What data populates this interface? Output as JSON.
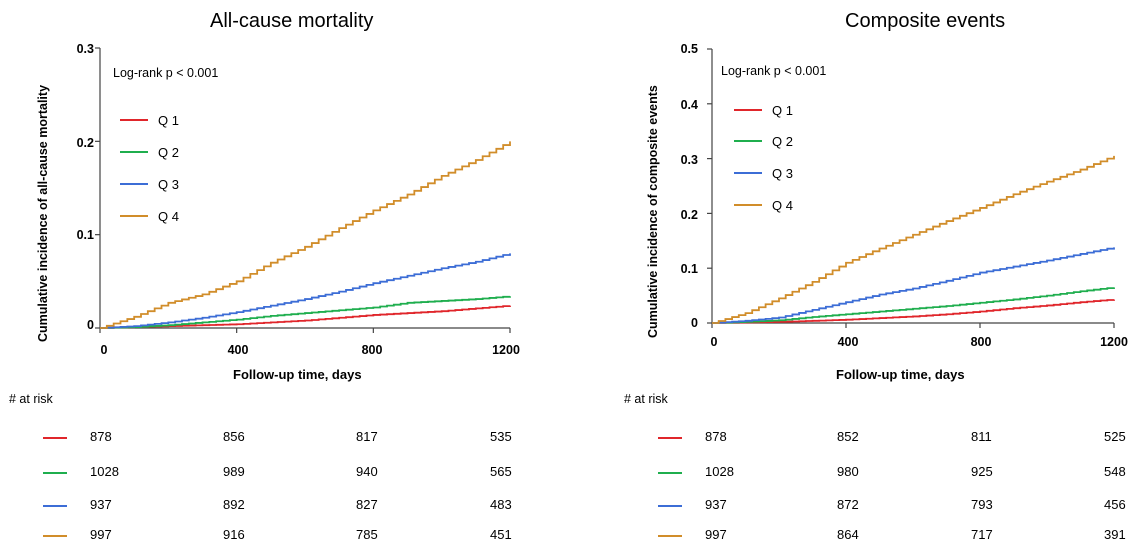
{
  "colors": {
    "Q1": "#e0262b",
    "Q2": "#1fae4e",
    "Q3": "#3c6dd6",
    "Q4": "#d18d2a"
  },
  "chart_data": [
    {
      "type": "line",
      "title": "All-cause mortality",
      "xlabel": "Follow-up time, days",
      "ylabel": "Cumulative incidence of all-cause mortality",
      "xlim": [
        0,
        1200
      ],
      "ylim": [
        0,
        0.3
      ],
      "xticks": [
        "0",
        "400",
        "800",
        "1200"
      ],
      "yticks": [
        "0",
        "0.1",
        "0.2",
        "0.3"
      ],
      "annotation": "Log-rank p < 0.001",
      "legend_position": "top-left",
      "series": [
        {
          "name": "Q 1",
          "color": "#e0262b",
          "x": [
            0,
            100,
            200,
            300,
            400,
            500,
            600,
            700,
            800,
            900,
            1000,
            1100,
            1200
          ],
          "y": [
            0,
            0.001,
            0.002,
            0.003,
            0.004,
            0.006,
            0.008,
            0.011,
            0.014,
            0.016,
            0.018,
            0.021,
            0.024
          ]
        },
        {
          "name": "Q 2",
          "color": "#1fae4e",
          "x": [
            0,
            100,
            200,
            300,
            400,
            500,
            600,
            700,
            800,
            900,
            1000,
            1100,
            1200
          ],
          "y": [
            0,
            0.001,
            0.003,
            0.006,
            0.009,
            0.013,
            0.016,
            0.019,
            0.022,
            0.027,
            0.029,
            0.031,
            0.034
          ]
        },
        {
          "name": "Q 3",
          "color": "#3c6dd6",
          "x": [
            0,
            100,
            200,
            300,
            400,
            500,
            600,
            700,
            800,
            900,
            1000,
            1100,
            1200
          ],
          "y": [
            0,
            0.002,
            0.006,
            0.011,
            0.017,
            0.024,
            0.031,
            0.039,
            0.048,
            0.056,
            0.064,
            0.071,
            0.08
          ]
        },
        {
          "name": "Q 4",
          "color": "#d18d2a",
          "x": [
            0,
            100,
            200,
            300,
            400,
            500,
            600,
            700,
            800,
            900,
            1000,
            1100,
            1200
          ],
          "y": [
            0,
            0.012,
            0.027,
            0.036,
            0.05,
            0.07,
            0.087,
            0.107,
            0.126,
            0.143,
            0.163,
            0.18,
            0.2
          ]
        }
      ],
      "at_risk": {
        "title": "# at risk",
        "rows": [
          {
            "name": "Q 1",
            "values": [
              "878",
              "856",
              "817",
              "535"
            ]
          },
          {
            "name": "Q 2",
            "values": [
              "1028",
              "989",
              "940",
              "565"
            ]
          },
          {
            "name": "Q 3",
            "values": [
              "937",
              "892",
              "827",
              "483"
            ]
          },
          {
            "name": "Q 4",
            "values": [
              "997",
              "916",
              "785",
              "451"
            ]
          }
        ]
      }
    },
    {
      "type": "line",
      "title": "Composite events",
      "xlabel": "Follow-up time, days",
      "ylabel": "Cumulative incidence of composite events",
      "xlim": [
        0,
        1200
      ],
      "ylim": [
        0,
        0.5
      ],
      "xticks": [
        "0",
        "400",
        "800",
        "1200"
      ],
      "yticks": [
        "0",
        "0.1",
        "0.2",
        "0.3",
        "0.4",
        "0.5"
      ],
      "annotation": "Log-rank p < 0.001",
      "legend_position": "top-left",
      "series": [
        {
          "name": "Q 1",
          "color": "#e0262b",
          "x": [
            0,
            100,
            200,
            300,
            400,
            500,
            600,
            700,
            800,
            900,
            1000,
            1100,
            1200
          ],
          "y": [
            0,
            0.001,
            0.002,
            0.004,
            0.006,
            0.009,
            0.012,
            0.016,
            0.021,
            0.027,
            0.032,
            0.038,
            0.043
          ]
        },
        {
          "name": "Q 2",
          "color": "#1fae4e",
          "x": [
            0,
            100,
            200,
            300,
            400,
            500,
            600,
            700,
            800,
            900,
            1000,
            1100,
            1200
          ],
          "y": [
            0,
            0.002,
            0.005,
            0.011,
            0.016,
            0.021,
            0.026,
            0.031,
            0.037,
            0.043,
            0.05,
            0.058,
            0.065
          ]
        },
        {
          "name": "Q 3",
          "color": "#3c6dd6",
          "x": [
            0,
            100,
            200,
            300,
            400,
            500,
            600,
            700,
            800,
            900,
            1000,
            1100,
            1200
          ],
          "y": [
            0,
            0.004,
            0.01,
            0.024,
            0.038,
            0.052,
            0.063,
            0.077,
            0.092,
            0.103,
            0.114,
            0.126,
            0.138
          ]
        },
        {
          "name": "Q 4",
          "color": "#d18d2a",
          "x": [
            0,
            100,
            200,
            300,
            400,
            500,
            600,
            700,
            800,
            900,
            1000,
            1100,
            1200
          ],
          "y": [
            0,
            0.018,
            0.045,
            0.075,
            0.11,
            0.136,
            0.161,
            0.186,
            0.21,
            0.235,
            0.258,
            0.28,
            0.305
          ]
        }
      ],
      "at_risk": {
        "title": "# at risk",
        "rows": [
          {
            "name": "Q 1",
            "values": [
              "878",
              "852",
              "811",
              "525"
            ]
          },
          {
            "name": "Q 2",
            "values": [
              "1028",
              "980",
              "925",
              "548"
            ]
          },
          {
            "name": "Q 3",
            "values": [
              "937",
              "872",
              "793",
              "456"
            ]
          },
          {
            "name": "Q 4",
            "values": [
              "997",
              "864",
              "717",
              "391"
            ]
          }
        ]
      }
    }
  ]
}
